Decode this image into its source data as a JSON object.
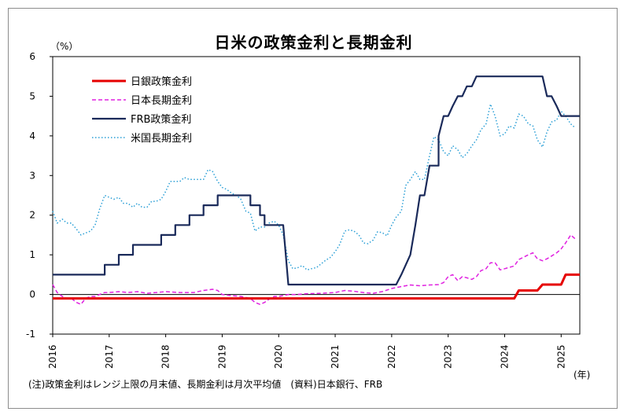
{
  "title": "日米の政策金利と長期金利",
  "unit_label": "（%）",
  "x_unit_label": "(年)",
  "note": "(注)政策金利はレンジ上限の月末値、長期金利は月次平均値　(資料)日本銀行、FRB",
  "chart_data": {
    "type": "line",
    "title": "日米の政策金利と長期金利",
    "ylabel": "（%）",
    "xlabel": "(年)",
    "ylim": [
      -1,
      6
    ],
    "xlim": [
      2016.0,
      2025.33
    ],
    "yticks": [
      -1,
      0,
      1,
      2,
      3,
      4,
      5,
      6
    ],
    "xticks": [
      "2016",
      "2017",
      "2018",
      "2019",
      "2020",
      "2021",
      "2022",
      "2023",
      "2024",
      "2025"
    ],
    "grid": false,
    "legend_position": "top-left",
    "series": [
      {
        "name": "日銀政策金利",
        "color": "#e60000",
        "style": "solid-thick",
        "points": [
          [
            2016.0,
            -0.1
          ],
          [
            2024.17,
            -0.1
          ],
          [
            2024.25,
            0.1
          ],
          [
            2024.58,
            0.1
          ],
          [
            2024.67,
            0.25
          ],
          [
            2025.0,
            0.25
          ],
          [
            2025.08,
            0.5
          ],
          [
            2025.33,
            0.5
          ]
        ]
      },
      {
        "name": "日本長期金利",
        "color": "#e020e0",
        "style": "dashed",
        "points": [
          [
            2016.0,
            0.25
          ],
          [
            2016.08,
            0.05
          ],
          [
            2016.17,
            -0.05
          ],
          [
            2016.25,
            -0.1
          ],
          [
            2016.33,
            -0.1
          ],
          [
            2016.42,
            -0.2
          ],
          [
            2016.5,
            -0.25
          ],
          [
            2016.58,
            -0.1
          ],
          [
            2016.67,
            -0.05
          ],
          [
            2016.75,
            -0.05
          ],
          [
            2016.83,
            0.0
          ],
          [
            2016.92,
            0.05
          ],
          [
            2017.0,
            0.05
          ],
          [
            2017.17,
            0.07
          ],
          [
            2017.33,
            0.05
          ],
          [
            2017.5,
            0.07
          ],
          [
            2017.67,
            0.03
          ],
          [
            2017.83,
            0.05
          ],
          [
            2018.0,
            0.07
          ],
          [
            2018.25,
            0.05
          ],
          [
            2018.5,
            0.05
          ],
          [
            2018.67,
            0.1
          ],
          [
            2018.83,
            0.13
          ],
          [
            2018.92,
            0.1
          ],
          [
            2019.0,
            0.0
          ],
          [
            2019.17,
            -0.03
          ],
          [
            2019.33,
            -0.05
          ],
          [
            2019.5,
            -0.1
          ],
          [
            2019.58,
            -0.2
          ],
          [
            2019.67,
            -0.25
          ],
          [
            2019.75,
            -0.2
          ],
          [
            2019.83,
            -0.12
          ],
          [
            2019.92,
            -0.05
          ],
          [
            2020.0,
            -0.05
          ],
          [
            2020.17,
            0.0
          ],
          [
            2020.33,
            0.0
          ],
          [
            2020.5,
            0.02
          ],
          [
            2020.75,
            0.03
          ],
          [
            2021.0,
            0.05
          ],
          [
            2021.17,
            0.1
          ],
          [
            2021.33,
            0.08
          ],
          [
            2021.5,
            0.05
          ],
          [
            2021.67,
            0.03
          ],
          [
            2021.83,
            0.07
          ],
          [
            2022.0,
            0.15
          ],
          [
            2022.17,
            0.2
          ],
          [
            2022.33,
            0.24
          ],
          [
            2022.5,
            0.22
          ],
          [
            2022.67,
            0.24
          ],
          [
            2022.83,
            0.25
          ],
          [
            2022.92,
            0.3
          ],
          [
            2023.0,
            0.45
          ],
          [
            2023.08,
            0.5
          ],
          [
            2023.17,
            0.35
          ],
          [
            2023.25,
            0.45
          ],
          [
            2023.33,
            0.42
          ],
          [
            2023.42,
            0.38
          ],
          [
            2023.5,
            0.45
          ],
          [
            2023.58,
            0.6
          ],
          [
            2023.67,
            0.65
          ],
          [
            2023.75,
            0.8
          ],
          [
            2023.83,
            0.8
          ],
          [
            2023.92,
            0.62
          ],
          [
            2024.0,
            0.65
          ],
          [
            2024.17,
            0.72
          ],
          [
            2024.25,
            0.88
          ],
          [
            2024.42,
            1.0
          ],
          [
            2024.5,
            1.05
          ],
          [
            2024.58,
            0.9
          ],
          [
            2024.67,
            0.85
          ],
          [
            2024.75,
            0.9
          ],
          [
            2024.83,
            0.97
          ],
          [
            2024.92,
            1.05
          ],
          [
            2025.0,
            1.15
          ],
          [
            2025.08,
            1.3
          ],
          [
            2025.17,
            1.5
          ],
          [
            2025.25,
            1.4
          ]
        ]
      },
      {
        "name": "FRB政策金利",
        "color": "#1a2a5a",
        "style": "solid",
        "points": [
          [
            2016.0,
            0.5
          ],
          [
            2016.92,
            0.5
          ],
          [
            2016.92,
            0.75
          ],
          [
            2017.17,
            0.75
          ],
          [
            2017.17,
            1.0
          ],
          [
            2017.42,
            1.0
          ],
          [
            2017.42,
            1.25
          ],
          [
            2017.92,
            1.25
          ],
          [
            2017.92,
            1.5
          ],
          [
            2018.17,
            1.5
          ],
          [
            2018.17,
            1.75
          ],
          [
            2018.42,
            1.75
          ],
          [
            2018.42,
            2.0
          ],
          [
            2018.67,
            2.0
          ],
          [
            2018.67,
            2.25
          ],
          [
            2018.92,
            2.25
          ],
          [
            2018.92,
            2.5
          ],
          [
            2019.5,
            2.5
          ],
          [
            2019.5,
            2.25
          ],
          [
            2019.67,
            2.25
          ],
          [
            2019.67,
            2.0
          ],
          [
            2019.75,
            2.0
          ],
          [
            2019.75,
            1.75
          ],
          [
            2020.08,
            1.75
          ],
          [
            2020.17,
            0.25
          ],
          [
            2022.08,
            0.25
          ],
          [
            2022.17,
            0.5
          ],
          [
            2022.33,
            1.0
          ],
          [
            2022.42,
            1.75
          ],
          [
            2022.5,
            2.5
          ],
          [
            2022.58,
            2.5
          ],
          [
            2022.67,
            3.25
          ],
          [
            2022.83,
            3.25
          ],
          [
            2022.83,
            4.0
          ],
          [
            2022.92,
            4.5
          ],
          [
            2023.0,
            4.5
          ],
          [
            2023.08,
            4.75
          ],
          [
            2023.17,
            5.0
          ],
          [
            2023.25,
            5.0
          ],
          [
            2023.33,
            5.25
          ],
          [
            2023.42,
            5.25
          ],
          [
            2023.5,
            5.5
          ],
          [
            2024.67,
            5.5
          ],
          [
            2024.75,
            5.0
          ],
          [
            2024.83,
            5.0
          ],
          [
            2024.92,
            4.75
          ],
          [
            2025.0,
            4.5
          ],
          [
            2025.33,
            4.5
          ]
        ]
      },
      {
        "name": "米国長期金利",
        "color": "#2a9fd6",
        "style": "dotted",
        "points": [
          [
            2016.0,
            2.1
          ],
          [
            2016.08,
            1.8
          ],
          [
            2016.17,
            1.9
          ],
          [
            2016.25,
            1.8
          ],
          [
            2016.33,
            1.8
          ],
          [
            2016.42,
            1.65
          ],
          [
            2016.5,
            1.5
          ],
          [
            2016.58,
            1.55
          ],
          [
            2016.67,
            1.6
          ],
          [
            2016.75,
            1.75
          ],
          [
            2016.83,
            2.15
          ],
          [
            2016.92,
            2.5
          ],
          [
            2017.0,
            2.45
          ],
          [
            2017.08,
            2.4
          ],
          [
            2017.17,
            2.45
          ],
          [
            2017.25,
            2.3
          ],
          [
            2017.33,
            2.3
          ],
          [
            2017.42,
            2.2
          ],
          [
            2017.5,
            2.3
          ],
          [
            2017.58,
            2.2
          ],
          [
            2017.67,
            2.2
          ],
          [
            2017.75,
            2.35
          ],
          [
            2017.83,
            2.35
          ],
          [
            2017.92,
            2.4
          ],
          [
            2018.0,
            2.6
          ],
          [
            2018.08,
            2.85
          ],
          [
            2018.17,
            2.85
          ],
          [
            2018.25,
            2.85
          ],
          [
            2018.33,
            2.95
          ],
          [
            2018.42,
            2.9
          ],
          [
            2018.5,
            2.9
          ],
          [
            2018.58,
            2.9
          ],
          [
            2018.67,
            2.9
          ],
          [
            2018.75,
            3.15
          ],
          [
            2018.83,
            3.1
          ],
          [
            2018.92,
            2.85
          ],
          [
            2019.0,
            2.7
          ],
          [
            2019.08,
            2.65
          ],
          [
            2019.17,
            2.55
          ],
          [
            2019.25,
            2.5
          ],
          [
            2019.33,
            2.4
          ],
          [
            2019.42,
            2.1
          ],
          [
            2019.5,
            2.05
          ],
          [
            2019.58,
            1.6
          ],
          [
            2019.67,
            1.7
          ],
          [
            2019.75,
            1.7
          ],
          [
            2019.83,
            1.8
          ],
          [
            2019.92,
            1.85
          ],
          [
            2020.0,
            1.75
          ],
          [
            2020.08,
            1.5
          ],
          [
            2020.17,
            0.85
          ],
          [
            2020.25,
            0.65
          ],
          [
            2020.33,
            0.67
          ],
          [
            2020.42,
            0.73
          ],
          [
            2020.5,
            0.62
          ],
          [
            2020.58,
            0.65
          ],
          [
            2020.67,
            0.68
          ],
          [
            2020.75,
            0.77
          ],
          [
            2020.83,
            0.86
          ],
          [
            2020.92,
            0.94
          ],
          [
            2021.0,
            1.08
          ],
          [
            2021.08,
            1.26
          ],
          [
            2021.17,
            1.6
          ],
          [
            2021.25,
            1.63
          ],
          [
            2021.33,
            1.6
          ],
          [
            2021.42,
            1.5
          ],
          [
            2021.5,
            1.3
          ],
          [
            2021.58,
            1.28
          ],
          [
            2021.67,
            1.37
          ],
          [
            2021.75,
            1.58
          ],
          [
            2021.83,
            1.56
          ],
          [
            2021.92,
            1.48
          ],
          [
            2022.0,
            1.75
          ],
          [
            2022.08,
            1.95
          ],
          [
            2022.17,
            2.1
          ],
          [
            2022.25,
            2.75
          ],
          [
            2022.33,
            2.9
          ],
          [
            2022.42,
            3.1
          ],
          [
            2022.5,
            2.9
          ],
          [
            2022.58,
            2.9
          ],
          [
            2022.67,
            3.5
          ],
          [
            2022.75,
            3.98
          ],
          [
            2022.83,
            3.9
          ],
          [
            2022.92,
            3.6
          ],
          [
            2023.0,
            3.5
          ],
          [
            2023.08,
            3.75
          ],
          [
            2023.17,
            3.65
          ],
          [
            2023.25,
            3.45
          ],
          [
            2023.33,
            3.55
          ],
          [
            2023.42,
            3.75
          ],
          [
            2023.5,
            3.9
          ],
          [
            2023.58,
            4.15
          ],
          [
            2023.67,
            4.3
          ],
          [
            2023.75,
            4.8
          ],
          [
            2023.83,
            4.5
          ],
          [
            2023.92,
            4.0
          ],
          [
            2024.0,
            4.05
          ],
          [
            2024.08,
            4.25
          ],
          [
            2024.17,
            4.2
          ],
          [
            2024.25,
            4.55
          ],
          [
            2024.33,
            4.5
          ],
          [
            2024.42,
            4.3
          ],
          [
            2024.5,
            4.25
          ],
          [
            2024.58,
            3.9
          ],
          [
            2024.67,
            3.72
          ],
          [
            2024.75,
            4.1
          ],
          [
            2024.83,
            4.35
          ],
          [
            2024.92,
            4.4
          ],
          [
            2025.0,
            4.62
          ],
          [
            2025.08,
            4.5
          ],
          [
            2025.17,
            4.3
          ],
          [
            2025.25,
            4.2
          ]
        ]
      }
    ]
  }
}
